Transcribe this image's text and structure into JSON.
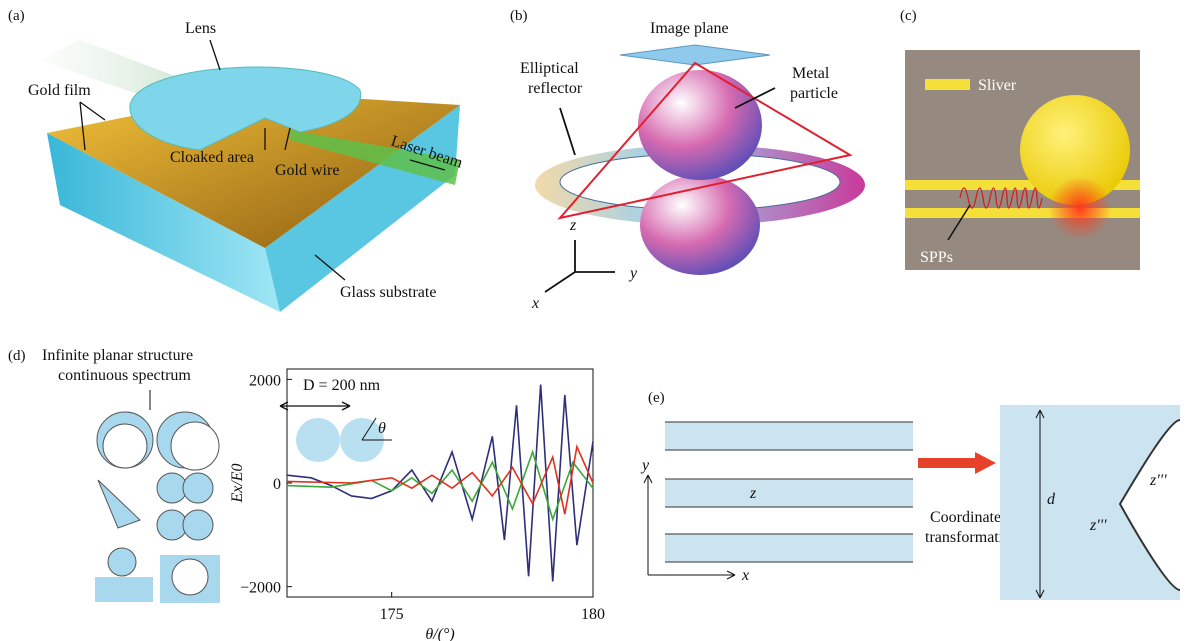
{
  "panel_a": {
    "label": "(a)",
    "lens": "Lens",
    "gold_film": "Gold film",
    "cloaked_area": "Cloaked area",
    "gold_wire": "Gold wire",
    "laser_beam": "Laser beam",
    "glass_substrate": "Glass substrate"
  },
  "panel_b": {
    "label": "(b)",
    "image_plane": "Image plane",
    "elliptical_reflector": [
      "Elliptical",
      "reflector"
    ],
    "metal_particle": [
      "Metal",
      "particle"
    ],
    "axis_z": "z",
    "axis_y": "y",
    "axis_x": "x"
  },
  "panel_c": {
    "label": "(c)",
    "sliver": "Sliver",
    "spps": "SPPs"
  },
  "panel_d": {
    "label": "(d)",
    "caption": [
      "Infinite planar structure",
      "continuous spectrum"
    ],
    "inset_d": "D = 200 nm",
    "inset_theta": "θ",
    "chart_data": {
      "type": "line",
      "y_label": "Ex/E0",
      "x_label": "θ/(°)",
      "xlim": [
        172.4,
        180
      ],
      "xticks": [
        175,
        180
      ],
      "ylim": [
        -2200,
        2200
      ],
      "yticks": [
        2000,
        0,
        {
          "value": -2000,
          "label": "−2000"
        }
      ],
      "series": [
        {
          "color": "#2e2e7a",
          "x": [
            172.4,
            173,
            173.5,
            174,
            174.5,
            175,
            175.5,
            176,
            176.5,
            177,
            177.5,
            177.8,
            178.1,
            178.4,
            178.7,
            179,
            179.3,
            179.6,
            180
          ],
          "values": [
            150,
            100,
            -50,
            -250,
            -300,
            -150,
            250,
            -350,
            600,
            -700,
            900,
            -1100,
            1500,
            -1800,
            1900,
            -1900,
            1700,
            -1200,
            800
          ]
        },
        {
          "color": "#3aa83a",
          "x": [
            172.4,
            173.5,
            174.5,
            175,
            175.5,
            176,
            176.5,
            177,
            177.5,
            178,
            178.5,
            179,
            179.5,
            180
          ],
          "values": [
            -50,
            -80,
            50,
            -150,
            100,
            -200,
            250,
            -350,
            400,
            -500,
            600,
            -700,
            400,
            -100
          ]
        },
        {
          "color": "#e0301e",
          "x": [
            172.4,
            174,
            175,
            175.5,
            176,
            176.5,
            177,
            177.5,
            178,
            178.5,
            179,
            179.3,
            179.6,
            180
          ],
          "values": [
            30,
            0,
            100,
            -100,
            150,
            -100,
            200,
            -250,
            300,
            -400,
            500,
            -600,
            700,
            0
          ]
        }
      ]
    }
  },
  "panel_e": {
    "label": "(e)",
    "axis_y": "y",
    "axis_x": "x",
    "z": "z",
    "transform": [
      "Coordinate",
      "transformation"
    ],
    "d": "d",
    "z_left": "z'''",
    "z_right": "z'''"
  }
}
